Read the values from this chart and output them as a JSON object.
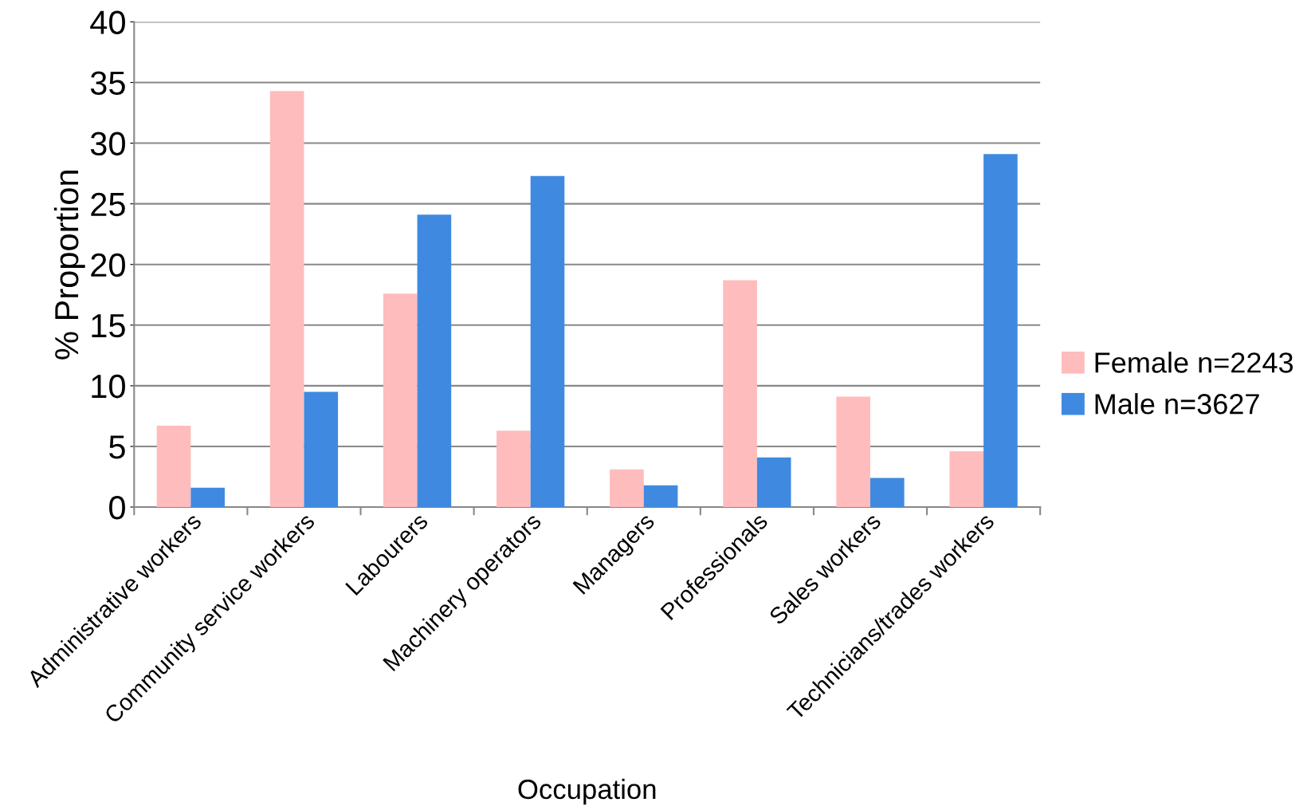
{
  "chart_data": {
    "type": "bar",
    "xlabel": "Occupation",
    "ylabel": "% Proportion",
    "categories": [
      "Administrative workers",
      "Community service workers",
      "Labourers",
      "Machinery operators",
      "Managers",
      "Professionals",
      "Sales workers",
      "Technicians/trades workers"
    ],
    "series": [
      {
        "name": "Female n=2243",
        "color": "#ffbcbc",
        "values": [
          6.7,
          34.3,
          17.6,
          6.3,
          3.1,
          18.7,
          9.1,
          4.6
        ]
      },
      {
        "name": "Male n=3627",
        "color": "#3f8ae0",
        "values": [
          1.6,
          9.5,
          24.1,
          27.3,
          1.8,
          4.1,
          2.4,
          29.1
        ]
      }
    ],
    "ylim": [
      0,
      40
    ],
    "yticks": [
      0,
      5,
      10,
      15,
      20,
      25,
      30,
      35,
      40
    ],
    "grid": "y",
    "legend": "right"
  }
}
